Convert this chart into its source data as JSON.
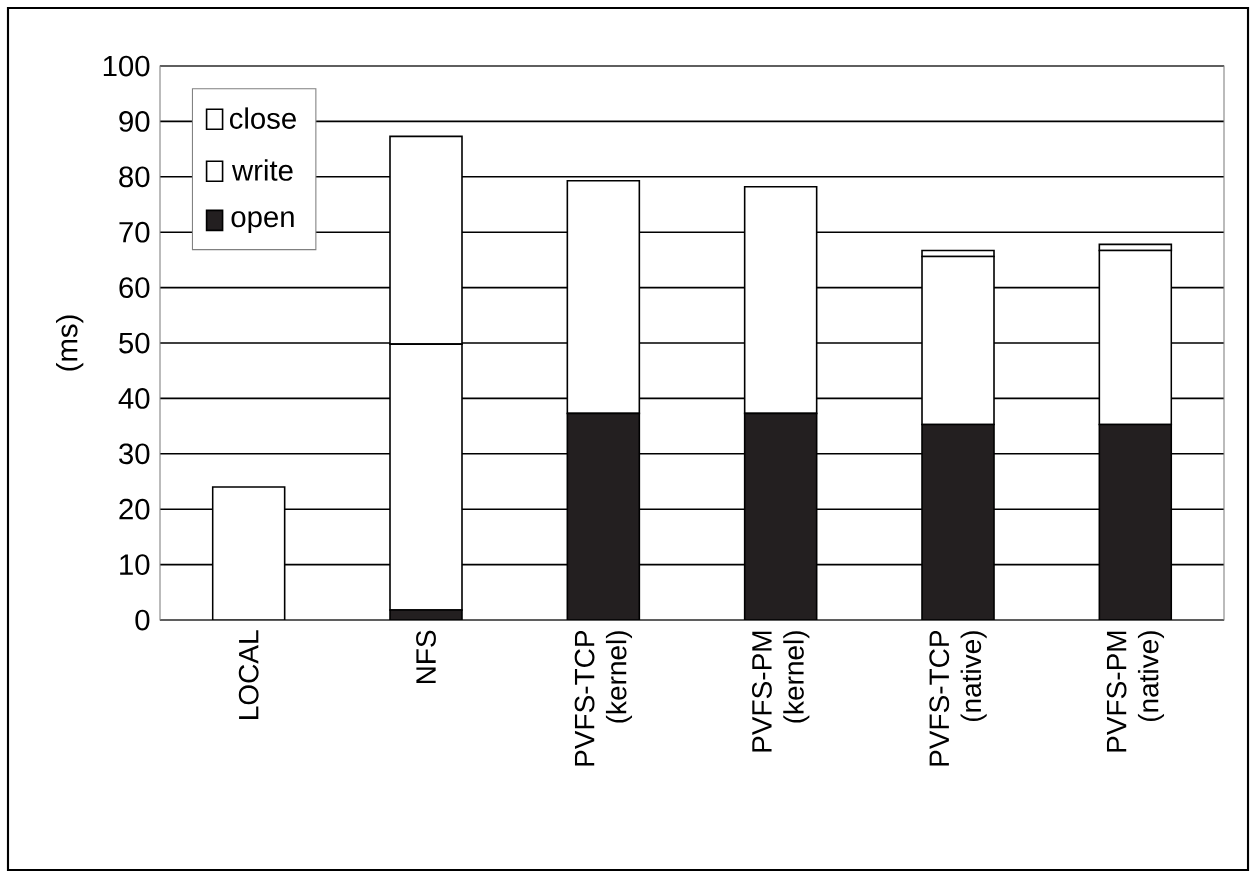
{
  "chart_data": {
    "type": "bar",
    "stacked": true,
    "ylabel": "(ms)",
    "categories": [
      "LOCAL",
      "NFS",
      "PVFS-TCP (kernel)",
      "PVFS-PM (kernel)",
      "PVFS-TCP (native)",
      "PVFS-PM (native)"
    ],
    "series": [
      {
        "name": "open",
        "color": "#231f20",
        "values": [
          0,
          1.8,
          37.3,
          37.3,
          35.3,
          35.3
        ]
      },
      {
        "name": "write",
        "color": "#ffffff",
        "values": [
          24,
          48,
          42,
          40.9,
          30.3,
          31.4
        ]
      },
      {
        "name": "close",
        "color": "#ffffff",
        "values": [
          0,
          37.5,
          0,
          0,
          1.1,
          1.1
        ]
      }
    ],
    "ylim": [
      0,
      100
    ],
    "yticks": [
      0,
      10,
      20,
      30,
      40,
      50,
      60,
      70,
      80,
      90,
      100
    ],
    "grid": "y",
    "legend": "top left"
  }
}
